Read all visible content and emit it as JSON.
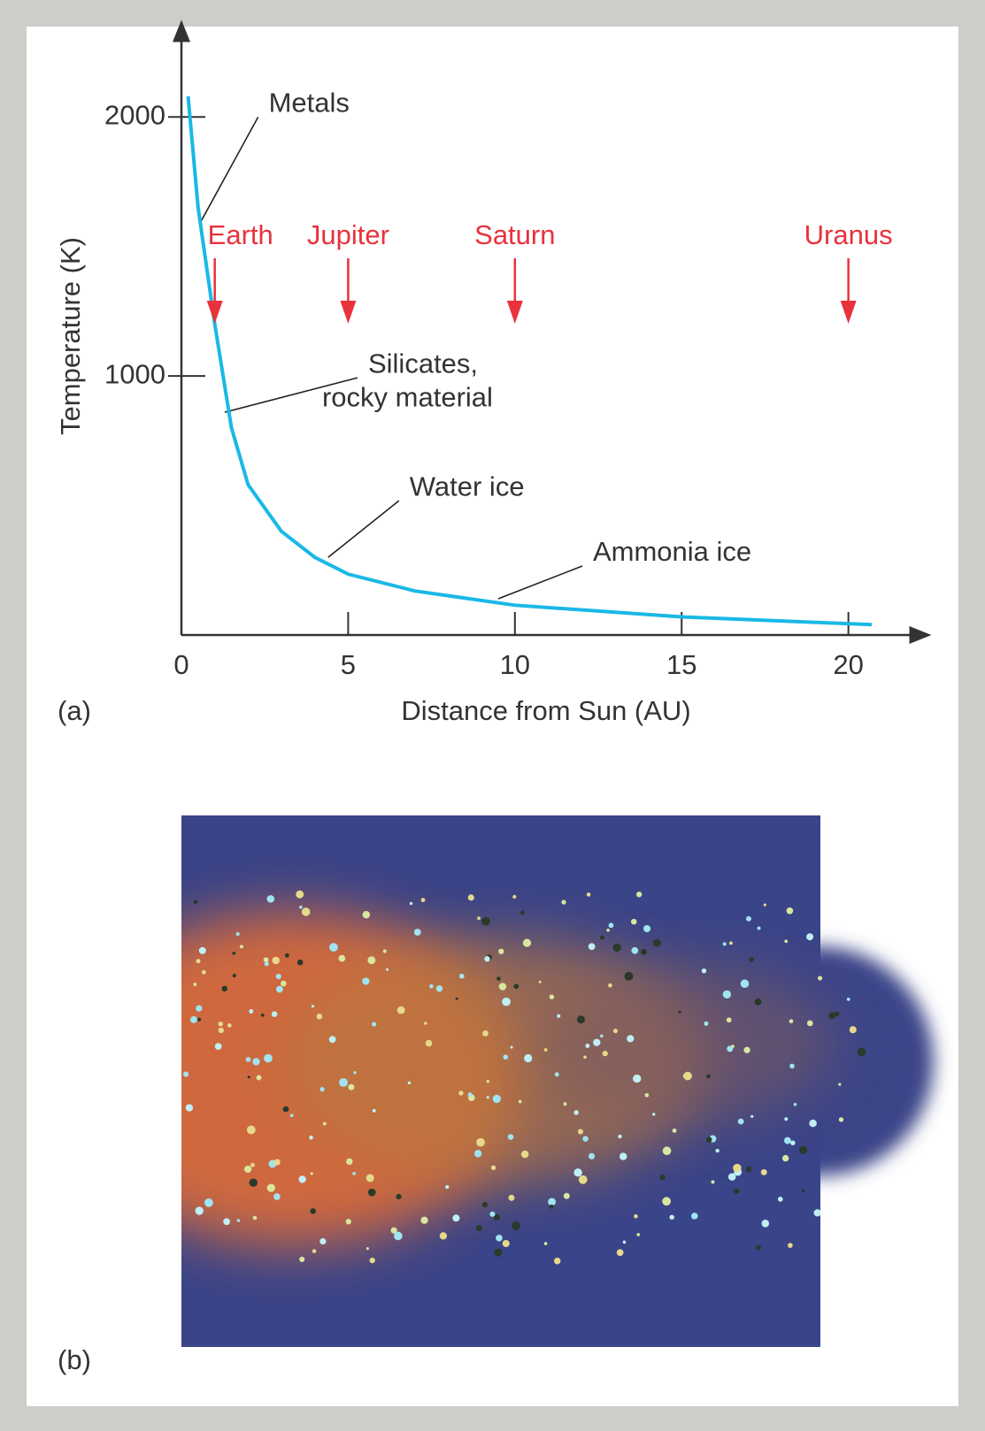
{
  "chart_data": {
    "type": "line",
    "x_label": "Distance from Sun (AU)",
    "y_label": "Temperature (K)",
    "panel_labels": [
      "(a)",
      "(b)"
    ],
    "x": [
      0.2,
      0.5,
      1,
      1.5,
      2,
      3,
      4,
      5,
      7,
      10,
      15,
      20.7
    ],
    "values": [
      2080,
      1650,
      1200,
      800,
      580,
      400,
      300,
      235,
      170,
      115,
      70,
      40
    ],
    "color": "#1ab8e6",
    "xlim": [
      0,
      22
    ],
    "ylim": [
      0,
      2250
    ],
    "xticks": [
      0,
      5,
      10,
      15,
      20
    ],
    "yticks": [
      1000,
      2000
    ],
    "markers": {
      "color": "#e8323c",
      "items": [
        {
          "label": "Earth",
          "x": 1
        },
        {
          "label": "Jupiter",
          "x": 5
        },
        {
          "label": "Saturn",
          "x": 10
        },
        {
          "label": "Uranus",
          "x": 20
        }
      ]
    },
    "annotations": [
      {
        "lines": [
          "Metals"
        ],
        "x": 0.6,
        "y": 1600
      },
      {
        "lines": [
          "Silicates,",
          "rocky material"
        ],
        "x": 1.3,
        "y": 860
      },
      {
        "lines": [
          "Water ice"
        ],
        "x": 4.4,
        "y": 300
      },
      {
        "lines": [
          "Ammonia ice"
        ],
        "x": 9.5,
        "y": 140
      }
    ]
  }
}
